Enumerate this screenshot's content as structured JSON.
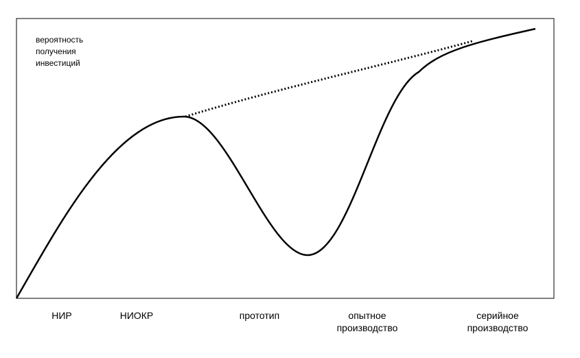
{
  "axis_label": [
    "вероятность",
    "получения",
    "инвестиций"
  ],
  "stages": [
    {
      "lines": [
        "НИР"
      ]
    },
    {
      "lines": [
        "НИОКР"
      ]
    },
    {
      "lines": [
        "прототип"
      ]
    },
    {
      "lines": [
        "опытное",
        "производство"
      ]
    },
    {
      "lines": [
        "серийное",
        "производство"
      ]
    }
  ]
}
